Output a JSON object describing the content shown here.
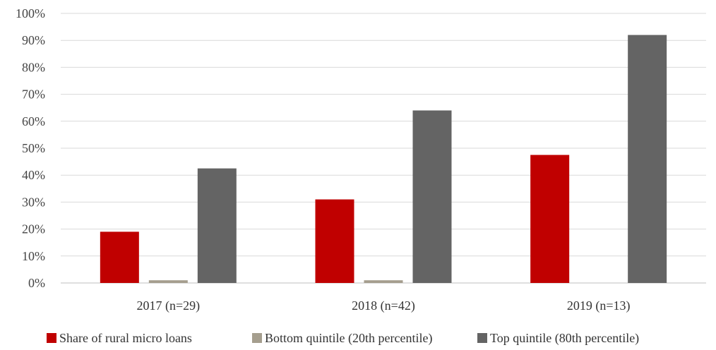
{
  "chart_data": {
    "type": "bar",
    "title": "",
    "xlabel": "",
    "ylabel": "",
    "categories": [
      "2017 (n=29)",
      "2018 (n=42)",
      "2019 (n=13)"
    ],
    "series": [
      {
        "name": "Share of rural micro loans",
        "values": [
          0.19,
          0.31,
          0.475
        ],
        "color": "#c00000"
      },
      {
        "name": "Bottom quintile (20th percentile)",
        "values": [
          0.01,
          0.01,
          0.0
        ],
        "color": "#a59e8e"
      },
      {
        "name": "Top quintile (80th percentile)",
        "values": [
          0.425,
          0.64,
          0.92
        ],
        "color": "#646464"
      }
    ],
    "ylim": [
      0,
      1
    ],
    "yticks": [
      "0%",
      "10%",
      "20%",
      "30%",
      "40%",
      "50%",
      "60%",
      "70%",
      "80%",
      "90%",
      "100%"
    ],
    "grid": true,
    "legend_position": "bottom"
  }
}
